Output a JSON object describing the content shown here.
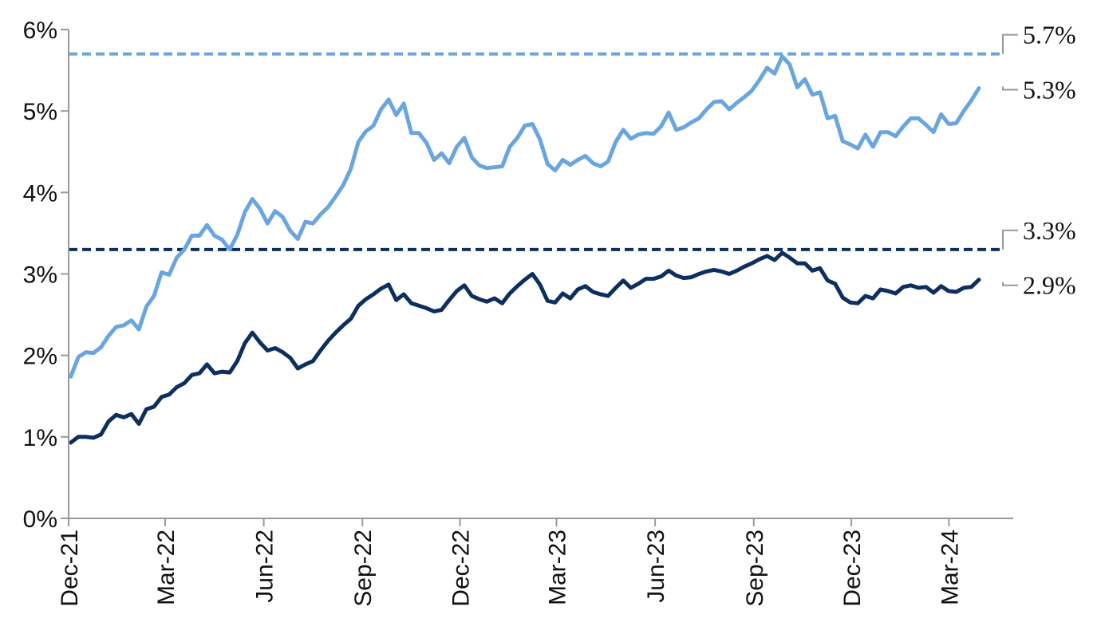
{
  "chart_data": {
    "type": "line",
    "title": "",
    "xlabel": "",
    "ylabel": "",
    "x_start": "2021-12-03",
    "x_end": "2024-03-29",
    "xlim": [
      "2021-12-01",
      "2024-04-30"
    ],
    "ylim": [
      0,
      6
    ],
    "y_ticks": [
      0,
      1,
      2,
      3,
      4,
      5,
      6
    ],
    "y_tick_labels": [
      "0%",
      "1%",
      "2%",
      "3%",
      "4%",
      "5%",
      "6%"
    ],
    "x_ticks": [
      "2021-12-01",
      "2022-03-01",
      "2022-06-01",
      "2022-09-01",
      "2022-12-01",
      "2023-03-01",
      "2023-06-01",
      "2023-09-01",
      "2023-12-01",
      "2024-03-01"
    ],
    "x_tick_labels": [
      "Dec-21",
      "Mar-22",
      "Jun-22",
      "Sep-22",
      "Dec-22",
      "Mar-23",
      "Jun-23",
      "Sep-23",
      "Dec-23",
      "Mar-24"
    ],
    "grid": false,
    "legend": "none",
    "series": [
      {
        "color": "#6aa5df",
        "values": [
          1.74,
          1.98,
          2.04,
          2.03,
          2.1,
          2.24,
          2.35,
          2.37,
          2.43,
          2.32,
          2.6,
          2.73,
          3.02,
          2.99,
          3.2,
          3.3,
          3.47,
          3.47,
          3.6,
          3.47,
          3.42,
          3.3,
          3.48,
          3.76,
          3.92,
          3.8,
          3.62,
          3.77,
          3.7,
          3.53,
          3.43,
          3.64,
          3.62,
          3.73,
          3.82,
          3.95,
          4.09,
          4.29,
          4.62,
          4.75,
          4.82,
          5.02,
          5.14,
          4.95,
          5.09,
          4.73,
          4.73,
          4.61,
          4.4,
          4.48,
          4.36,
          4.56,
          4.67,
          4.43,
          4.33,
          4.3,
          4.31,
          4.32,
          4.56,
          4.67,
          4.82,
          4.84,
          4.65,
          4.35,
          4.27,
          4.4,
          4.34,
          4.4,
          4.45,
          4.36,
          4.32,
          4.38,
          4.62,
          4.77,
          4.66,
          4.71,
          4.73,
          4.72,
          4.81,
          4.98,
          4.77,
          4.8,
          4.86,
          4.91,
          5.02,
          5.11,
          5.12,
          5.02,
          5.1,
          5.17,
          5.25,
          5.38,
          5.53,
          5.46,
          5.67,
          5.57,
          5.29,
          5.39,
          5.2,
          5.23,
          4.91,
          4.94,
          4.63,
          4.59,
          4.54,
          4.71,
          4.56,
          4.74,
          4.74,
          4.69,
          4.81,
          4.91,
          4.91,
          4.83,
          4.74,
          4.96,
          4.84,
          4.85,
          5.0,
          5.13,
          5.28
        ]
      },
      {
        "color": "#0d2f5f",
        "values": [
          0.93,
          1.0,
          1.0,
          0.99,
          1.03,
          1.19,
          1.27,
          1.24,
          1.28,
          1.16,
          1.34,
          1.37,
          1.49,
          1.52,
          1.61,
          1.66,
          1.76,
          1.78,
          1.89,
          1.78,
          1.8,
          1.79,
          1.93,
          2.15,
          2.28,
          2.16,
          2.06,
          2.09,
          2.04,
          1.97,
          1.84,
          1.89,
          1.93,
          2.06,
          2.18,
          2.28,
          2.37,
          2.45,
          2.61,
          2.69,
          2.75,
          2.82,
          2.87,
          2.68,
          2.75,
          2.64,
          2.61,
          2.58,
          2.54,
          2.56,
          2.68,
          2.79,
          2.86,
          2.73,
          2.69,
          2.66,
          2.7,
          2.64,
          2.76,
          2.85,
          2.93,
          3.0,
          2.87,
          2.67,
          2.65,
          2.76,
          2.7,
          2.81,
          2.85,
          2.78,
          2.75,
          2.73,
          2.83,
          2.92,
          2.83,
          2.88,
          2.94,
          2.94,
          2.97,
          3.04,
          2.98,
          2.95,
          2.96,
          3.0,
          3.03,
          3.05,
          3.03,
          3.0,
          3.04,
          3.09,
          3.13,
          3.18,
          3.22,
          3.17,
          3.26,
          3.2,
          3.13,
          3.13,
          3.04,
          3.07,
          2.92,
          2.88,
          2.71,
          2.65,
          2.64,
          2.73,
          2.7,
          2.81,
          2.79,
          2.76,
          2.84,
          2.86,
          2.83,
          2.84,
          2.77,
          2.85,
          2.79,
          2.78,
          2.83,
          2.84,
          2.93
        ]
      }
    ],
    "reference_lines": [
      {
        "value": 5.7,
        "color": "#6aa5df"
      },
      {
        "value": 3.3,
        "color": "#0d2f5f"
      }
    ],
    "end_labels": [
      {
        "text": "5.7%",
        "value": 5.7
      },
      {
        "text": "5.3%",
        "value": 5.3
      },
      {
        "text": "3.3%",
        "value": 3.3
      },
      {
        "text": "2.9%",
        "value": 2.9
      }
    ]
  }
}
